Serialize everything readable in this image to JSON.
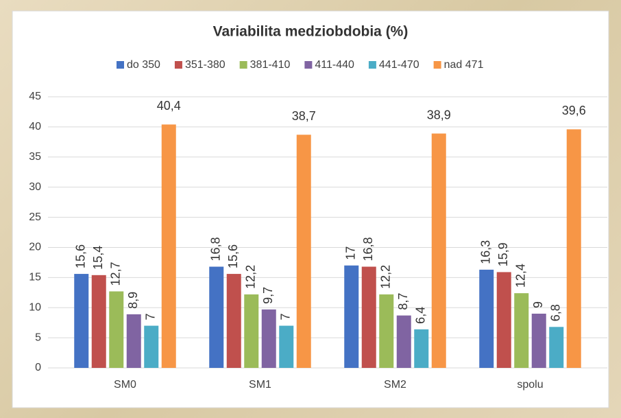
{
  "chart_data": {
    "type": "bar",
    "title": "Variabilita medziobdobia (%)",
    "categories": [
      "SM0",
      "SM1",
      "SM2",
      "spolu"
    ],
    "series": [
      {
        "name": "do 350",
        "color": "#4472c4",
        "values": [
          15.6,
          16.8,
          17,
          16.3
        ],
        "value_labels": [
          "15,6",
          "16,8",
          "17",
          "16,3"
        ]
      },
      {
        "name": "351-380",
        "color": "#c0504d",
        "values": [
          15.4,
          15.6,
          16.8,
          15.9
        ],
        "value_labels": [
          "15,4",
          "15,6",
          "16,8",
          "15,9"
        ]
      },
      {
        "name": "381-410",
        "color": "#9bbb59",
        "values": [
          12.7,
          12.2,
          12.2,
          12.4
        ],
        "value_labels": [
          "12,7",
          "12,2",
          "12,2",
          "12,4"
        ]
      },
      {
        "name": "411-440",
        "color": "#8064a2",
        "values": [
          8.9,
          9.7,
          8.7,
          9
        ],
        "value_labels": [
          "8,9",
          "9,7",
          "8,7",
          "9"
        ]
      },
      {
        "name": "441-470",
        "color": "#4bacc6",
        "values": [
          7,
          7,
          6.4,
          6.8
        ],
        "value_labels": [
          "7",
          "7",
          "6,4",
          "6,8"
        ]
      },
      {
        "name": "nad 471",
        "color": "#f79646",
        "values": [
          40.4,
          38.7,
          38.9,
          39.6
        ],
        "value_labels": [
          "40,4",
          "38,7",
          "38,9",
          "39,6"
        ]
      }
    ],
    "ylim": [
      0,
      45
    ],
    "yticks": [
      0,
      5,
      10,
      15,
      20,
      25,
      30,
      35,
      40,
      45
    ],
    "grid": true,
    "legend": "top"
  }
}
